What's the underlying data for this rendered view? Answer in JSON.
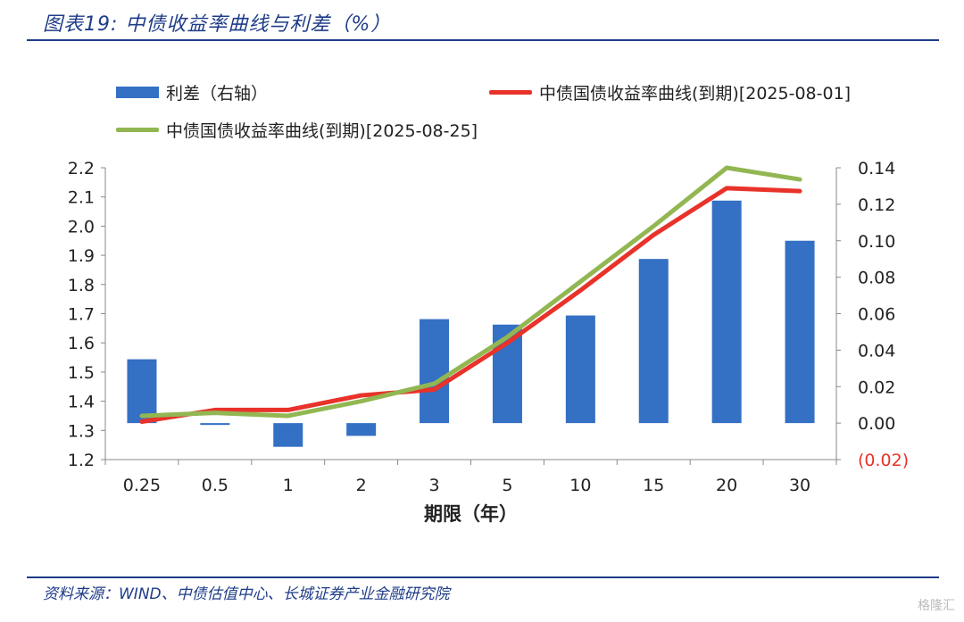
{
  "header": {
    "title": "图表19:  中债收益率曲线与利差（%）"
  },
  "footer": {
    "source": "资料来源：WIND、中债估值中心、长城证券产业金融研究院"
  },
  "watermark": "格隆汇",
  "colors": {
    "bar": "#3470c4",
    "line_0801": "#e8322a",
    "line_0825": "#92b752",
    "brand": "#1f3c88",
    "negative_tick": "#e8322a"
  },
  "chart_data": {
    "type": "bar+line",
    "categories": [
      "0.25",
      "0.5",
      "1",
      "2",
      "3",
      "5",
      "10",
      "15",
      "20",
      "30"
    ],
    "xlabel": "期限（年）",
    "y_left": {
      "ylim": [
        1.2,
        2.2
      ],
      "ticks": [
        "1.2",
        "1.3",
        "1.4",
        "1.5",
        "1.6",
        "1.7",
        "1.8",
        "1.9",
        "2.0",
        "2.1",
        "2.2"
      ]
    },
    "y_right": {
      "ylim": [
        -0.02,
        0.14
      ],
      "ticks": [
        "(0.02)",
        "0.00",
        "0.02",
        "0.04",
        "0.06",
        "0.08",
        "0.10",
        "0.12",
        "0.14"
      ]
    },
    "legend": [
      "利差（右轴）",
      "中债国债收益率曲线(到期)[2025-08-01]",
      "中债国债收益率曲线(到期)[2025-08-25]"
    ],
    "series": [
      {
        "name": "利差（右轴）",
        "type": "bar",
        "axis": "right",
        "values": [
          0.035,
          -0.001,
          -0.013,
          -0.007,
          0.057,
          0.054,
          0.059,
          0.09,
          0.122,
          0.1
        ]
      },
      {
        "name": "中债国债收益率曲线(到期)[2025-08-01]",
        "type": "line",
        "axis": "left",
        "values": [
          1.33,
          1.37,
          1.37,
          1.42,
          1.44,
          1.6,
          1.78,
          1.97,
          2.13,
          2.12
        ]
      },
      {
        "name": "中债国债收益率曲线(到期)[2025-08-25]",
        "type": "line",
        "axis": "left",
        "values": [
          1.35,
          1.36,
          1.35,
          1.4,
          1.46,
          1.62,
          1.81,
          2.0,
          2.2,
          2.16
        ]
      }
    ]
  }
}
